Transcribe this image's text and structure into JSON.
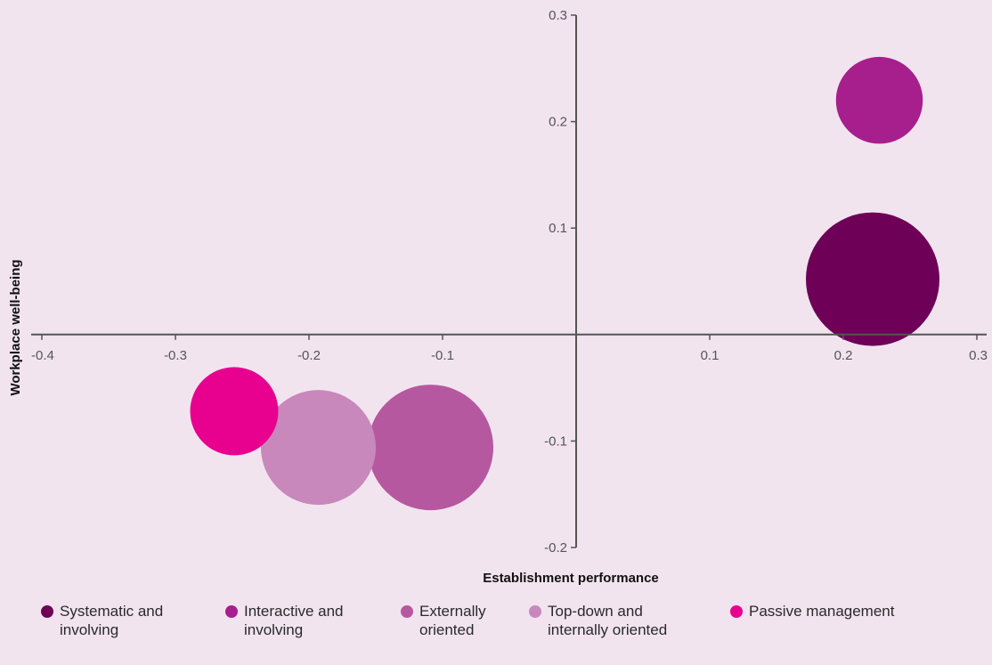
{
  "chart_data": {
    "type": "scatter",
    "title": "",
    "xlabel": "Establishment performance",
    "ylabel": "Workplace well-being",
    "xlim": [
      -0.4,
      0.3
    ],
    "ylim": [
      -0.2,
      0.3
    ],
    "x_ticks": [
      -0.4,
      -0.3,
      -0.2,
      -0.1,
      0.1,
      0.2,
      0.3
    ],
    "x_tick_labels": [
      "-0.4",
      "-0.3",
      "-0.2",
      "-0.1",
      "0.1",
      "0.2",
      "0.3"
    ],
    "y_ticks": [
      0.3,
      0.2,
      0.1,
      -0.1,
      -0.2
    ],
    "y_tick_labels": [
      "0.3",
      "0.2",
      "0.1",
      "-0.1",
      "-0.2"
    ],
    "legend_position": "bottom",
    "series": [
      {
        "name": "Systematic and\ninvolving",
        "x": 0.222,
        "y": 0.052,
        "size": 1.0,
        "color": "#6e0057"
      },
      {
        "name": "Interactive and\ninvolving",
        "x": 0.227,
        "y": 0.22,
        "size": 0.65,
        "color": "#a71e8d"
      },
      {
        "name": "Externally\noriented",
        "x": -0.109,
        "y": -0.106,
        "size": 0.94,
        "color": "#b6589f"
      },
      {
        "name": "Top-down and\ninternally oriented",
        "x": -0.193,
        "y": -0.106,
        "size": 0.86,
        "color": "#c888bb"
      },
      {
        "name": "Passive management",
        "x": -0.256,
        "y": -0.072,
        "size": 0.66,
        "color": "#e8008f"
      }
    ]
  }
}
